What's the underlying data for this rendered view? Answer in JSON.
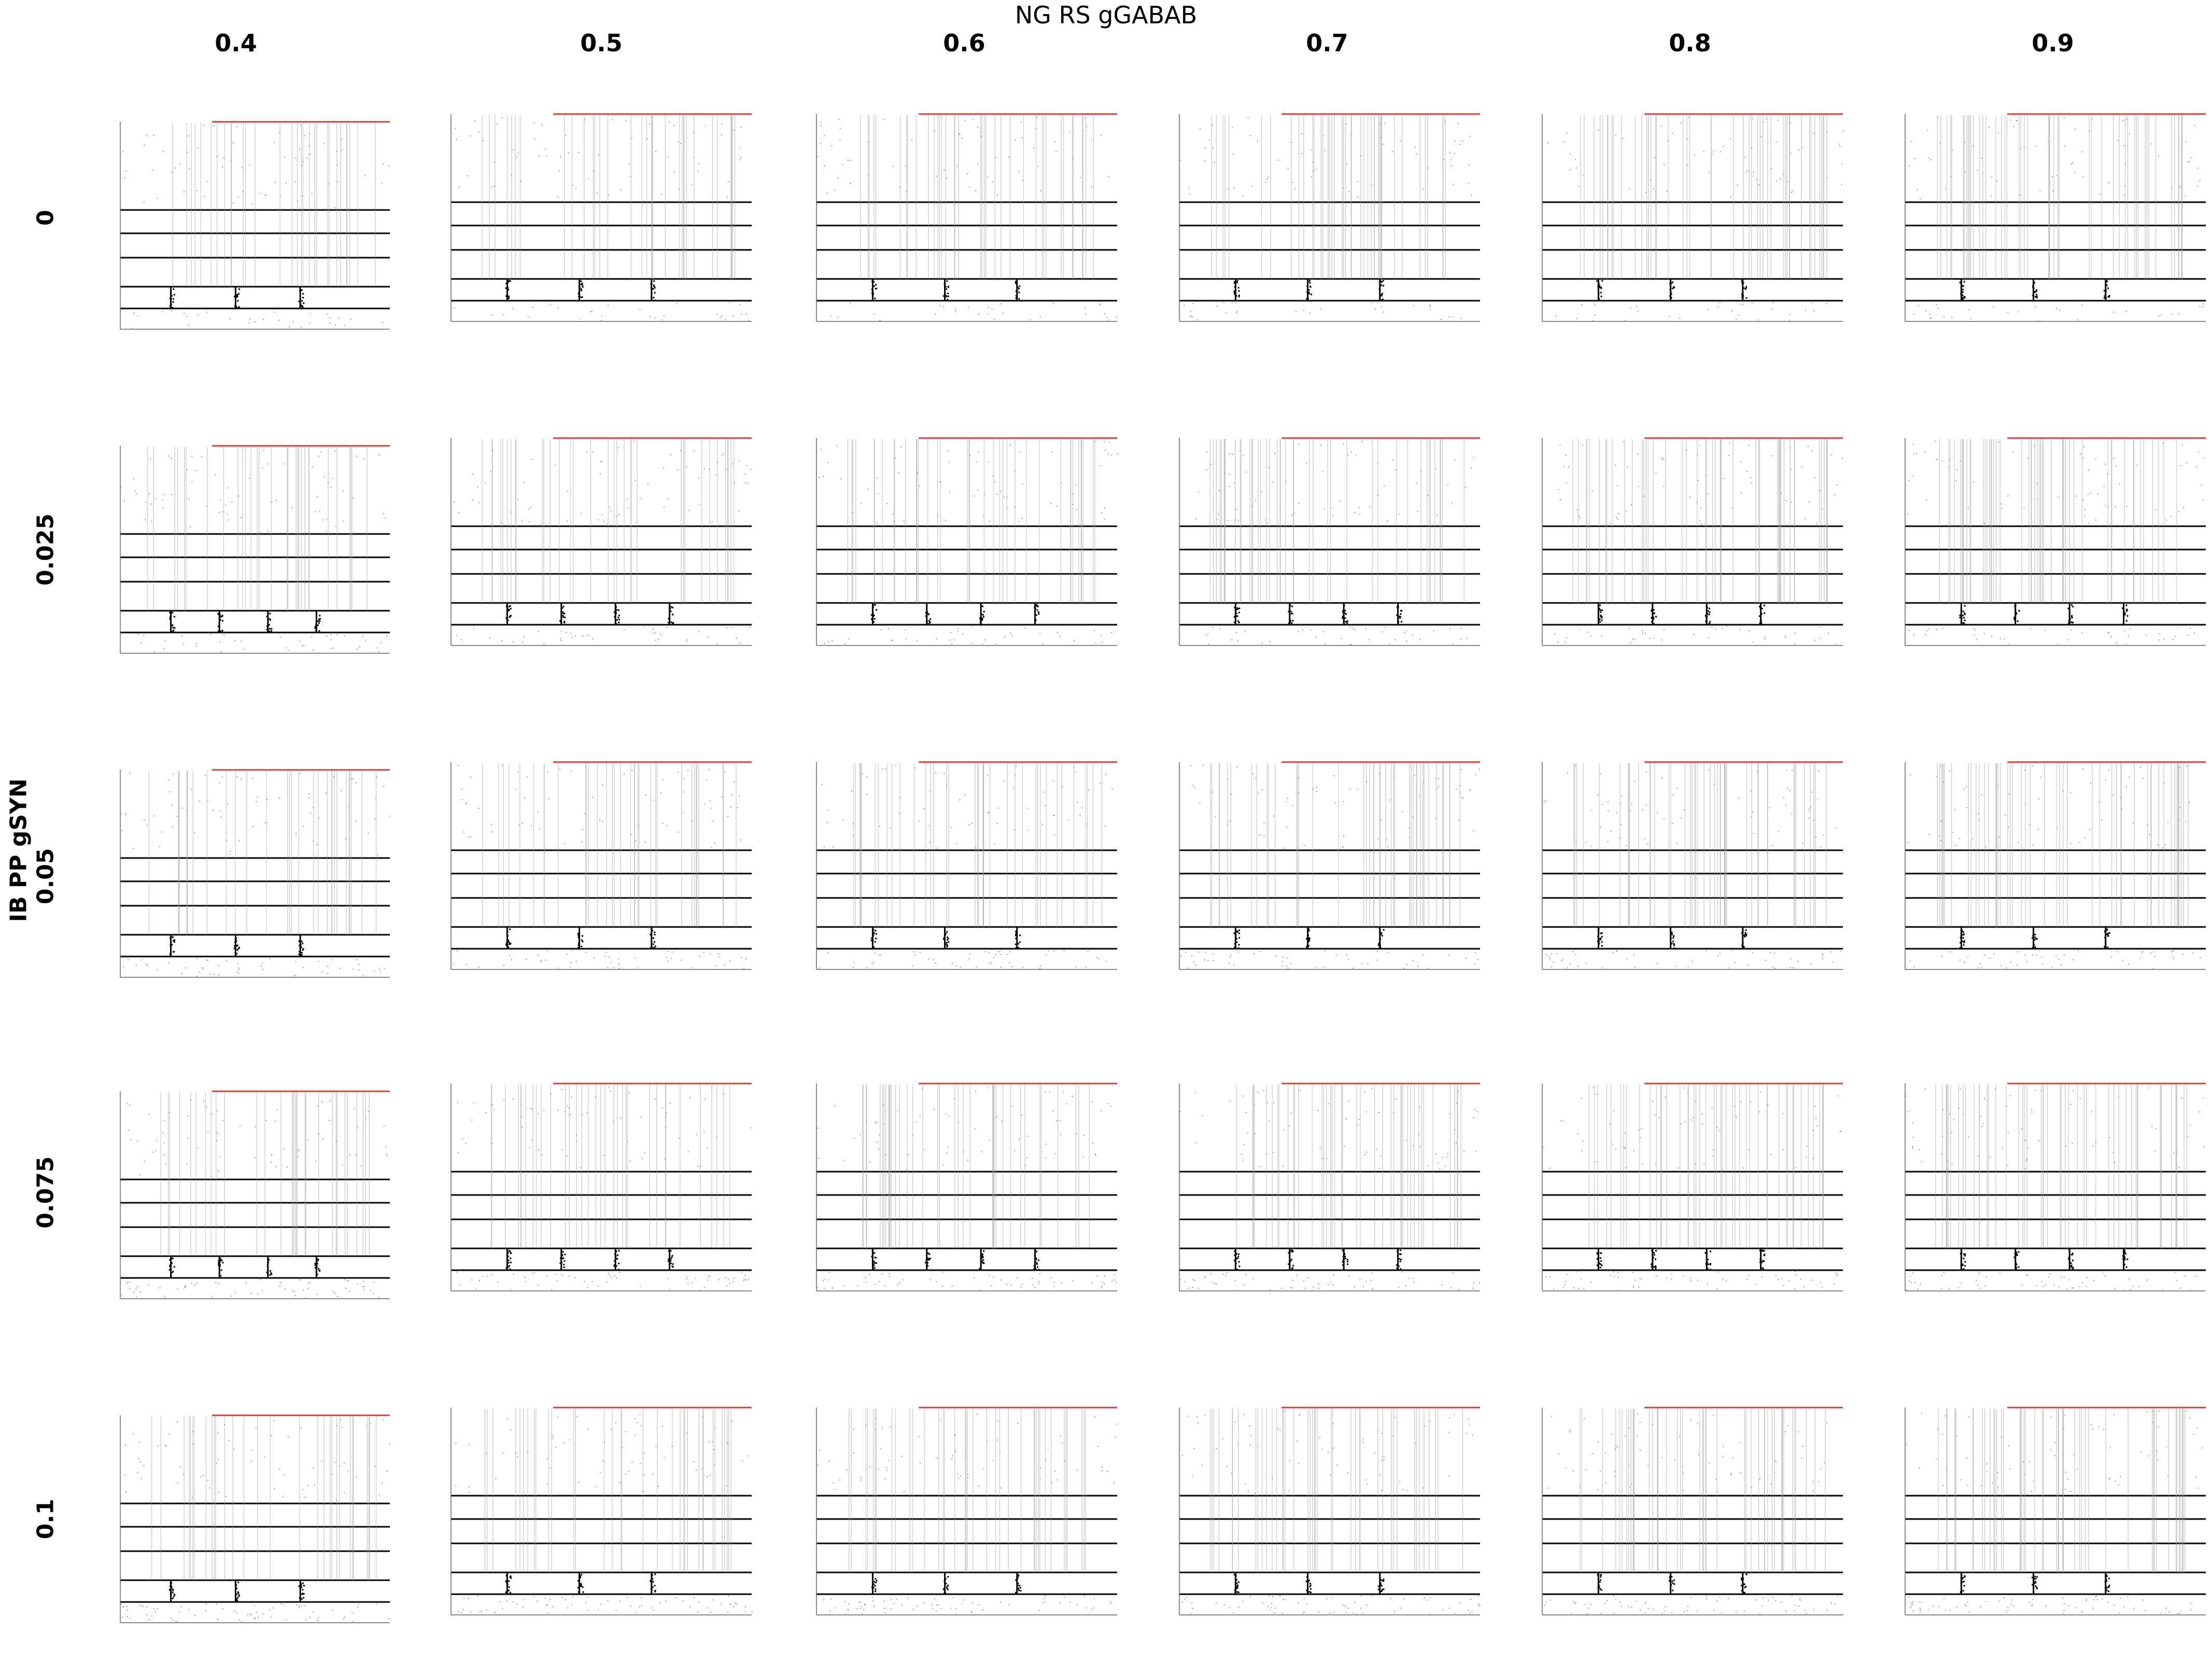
{
  "figure": {
    "title": "NG RS gGABAB",
    "row_axis_title": "IB PP gSYN"
  },
  "chart_data": {
    "type": "scatter",
    "title": "NG RS gGABAB",
    "column_variable": "NG RS gGABAB",
    "row_variable": "IB PP gSYN",
    "column_values": [
      "0.4",
      "0.5",
      "0.6",
      "0.7",
      "0.8",
      "0.9"
    ],
    "row_values": [
      "0",
      "0.025",
      "0.05",
      "0.075",
      "0.1"
    ],
    "panel_content": "spike raster per population (stacked sub-panels), time on x-axis",
    "panel_subplots": 6,
    "subplot_colors": {
      "frame": "#000000",
      "spikes": "#9a9a9a",
      "dense_spikes": "#000000",
      "top_marker": "#d04040"
    }
  }
}
